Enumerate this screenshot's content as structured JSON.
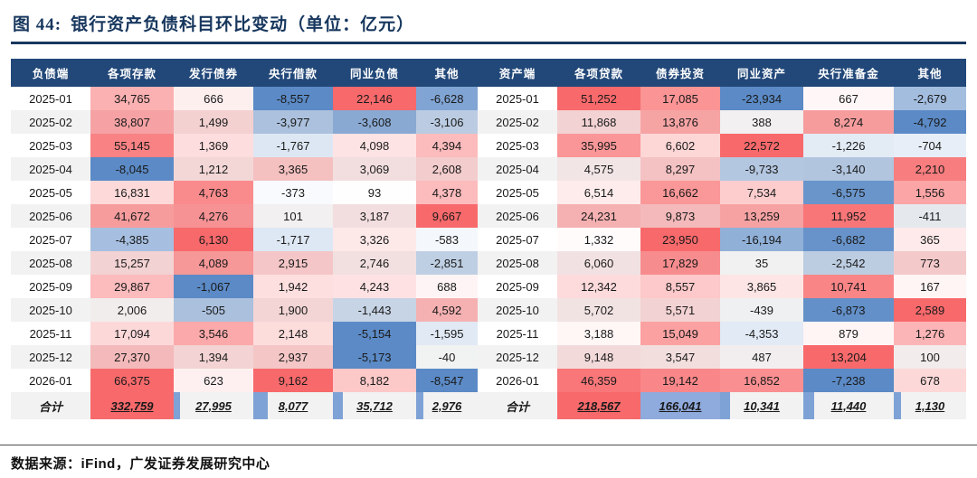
{
  "title": {
    "label": "图 44:",
    "text": "银行资产负债科目环比变动（单位：亿元）"
  },
  "footer": {
    "label": "数据来源：",
    "brand": "iFind",
    "rest": "，广发证券发展研究中心"
  },
  "colors": {
    "accent": "#17375E",
    "header_bg": "#224879",
    "header_fg": "#FFFFFF",
    "stripe": "#F2F2F2",
    "heat_pos": "#F8696B",
    "heat_neg": "#5B8AC6",
    "total_fill_pos": "#F8696B",
    "total_fill_neg": "#8FAADC",
    "total_bar": "#7EA2D6"
  },
  "chart_data": {
    "type": "table",
    "title": "图 44: 银行资产负债科目环比变动（单位：亿元）",
    "unit": "亿元",
    "columns": [
      "负债端",
      "各项存款",
      "发行债券",
      "央行借款",
      "同业负债",
      "其他",
      "资产端",
      "各项贷款",
      "债券投资",
      "同业资产",
      "央行准备金",
      "其他"
    ],
    "rows": [
      [
        "2025-01",
        34765,
        666,
        -8557,
        22146,
        -6628,
        "2025-01",
        51252,
        17085,
        -23934,
        667,
        -2679
      ],
      [
        "2025-02",
        38807,
        1499,
        -3977,
        -3608,
        -3106,
        "2025-02",
        11868,
        13876,
        388,
        8274,
        -4792
      ],
      [
        "2025-03",
        55145,
        1369,
        -1767,
        4098,
        4394,
        "2025-03",
        35995,
        6602,
        22572,
        -1226,
        -704
      ],
      [
        "2025-04",
        -8045,
        1212,
        3365,
        3069,
        2608,
        "2025-04",
        4575,
        8297,
        -9733,
        -3140,
        2210
      ],
      [
        "2025-05",
        16831,
        4763,
        -373,
        93,
        4378,
        "2025-05",
        6514,
        16662,
        7534,
        -6575,
        1556
      ],
      [
        "2025-06",
        41672,
        4276,
        101,
        3187,
        9667,
        "2025-06",
        24231,
        9873,
        13259,
        11952,
        -411
      ],
      [
        "2025-07",
        -4385,
        6130,
        -1717,
        3326,
        -583,
        "2025-07",
        1332,
        23950,
        -16194,
        -6682,
        365
      ],
      [
        "2025-08",
        15257,
        4089,
        2915,
        2746,
        -2851,
        "2025-08",
        6060,
        17829,
        35,
        -2542,
        773
      ],
      [
        "2025-09",
        29867,
        -1067,
        1942,
        4243,
        688,
        "2025-09",
        12342,
        8557,
        3865,
        10741,
        167
      ],
      [
        "2025-10",
        2006,
        -505,
        1900,
        -1443,
        4592,
        "2025-10",
        5702,
        5571,
        -439,
        -6873,
        2589
      ],
      [
        "2025-11",
        17094,
        3546,
        2148,
        -5154,
        -1595,
        "2025-11",
        3188,
        15049,
        -4353,
        879,
        1276
      ],
      [
        "2025-12",
        27370,
        1394,
        2937,
        -5173,
        -40,
        "2025-12",
        9148,
        3547,
        487,
        13204,
        100
      ],
      [
        "2026-01",
        66375,
        623,
        9162,
        8182,
        -8547,
        "2026-01",
        46359,
        19142,
        16852,
        -7238,
        678
      ]
    ],
    "totals": [
      "合计",
      332759,
      27995,
      8077,
      35712,
      2976,
      "合计",
      218567,
      166041,
      10341,
      11440,
      1130
    ]
  },
  "table_style": {
    "totals_cells": [
      {
        "style": "fill-pos"
      },
      {
        "style": "bar",
        "frac": 0.08
      },
      {
        "style": "bar",
        "frac": 0.18
      },
      {
        "style": "bar",
        "frac": 0.12
      },
      {
        "style": "bar",
        "frac": 0.12
      },
      {
        "style": "fill-pos"
      },
      {
        "style": "fill-neg"
      },
      {
        "style": "bar",
        "frac": 0.12
      },
      {
        "style": "bar",
        "frac": 0.12
      },
      {
        "style": "bar",
        "frac": 0.1
      }
    ]
  }
}
